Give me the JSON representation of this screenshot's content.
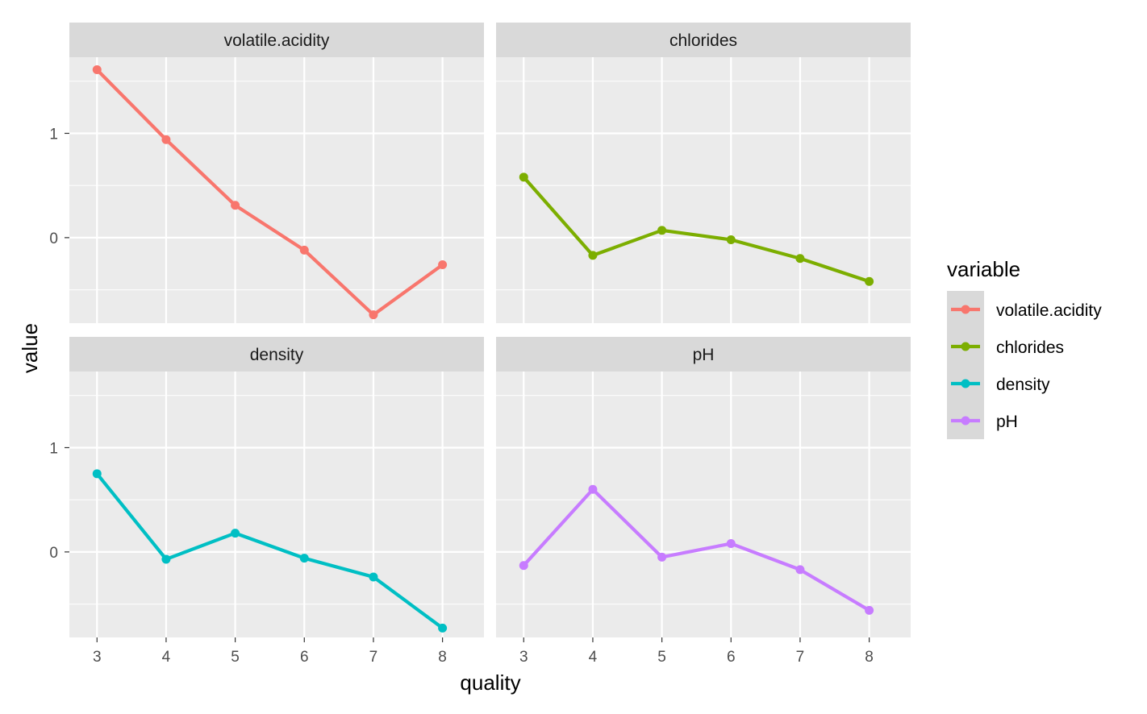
{
  "chart_data": {
    "type": "line",
    "facet_layout": "2x2",
    "xlabel": "quality",
    "ylabel": "value",
    "x": [
      3,
      4,
      5,
      6,
      7,
      8
    ],
    "x_ticks": [
      "3",
      "4",
      "5",
      "6",
      "7",
      "8"
    ],
    "y_ticks": [
      {
        "value": 0,
        "label": "0"
      },
      {
        "value": 1,
        "label": "1"
      }
    ],
    "ylim": [
      -0.82,
      1.73
    ],
    "xlim": [
      2.6,
      8.6
    ],
    "grid": true,
    "legend": {
      "title": "variable",
      "position": "right"
    },
    "series": [
      {
        "name": "volatile.acidity",
        "color": "#F8766D",
        "values": [
          1.61,
          0.94,
          0.31,
          -0.12,
          -0.74,
          -0.26
        ]
      },
      {
        "name": "chlorides",
        "color": "#7CAE00",
        "values": [
          0.58,
          -0.17,
          0.07,
          -0.02,
          -0.2,
          -0.42
        ]
      },
      {
        "name": "density",
        "color": "#00BFC4",
        "values": [
          0.75,
          -0.07,
          0.18,
          -0.06,
          -0.24,
          -0.73
        ]
      },
      {
        "name": "pH",
        "color": "#C77CFF",
        "values": [
          -0.13,
          0.6,
          -0.05,
          0.08,
          -0.17,
          -0.56
        ]
      }
    ]
  }
}
